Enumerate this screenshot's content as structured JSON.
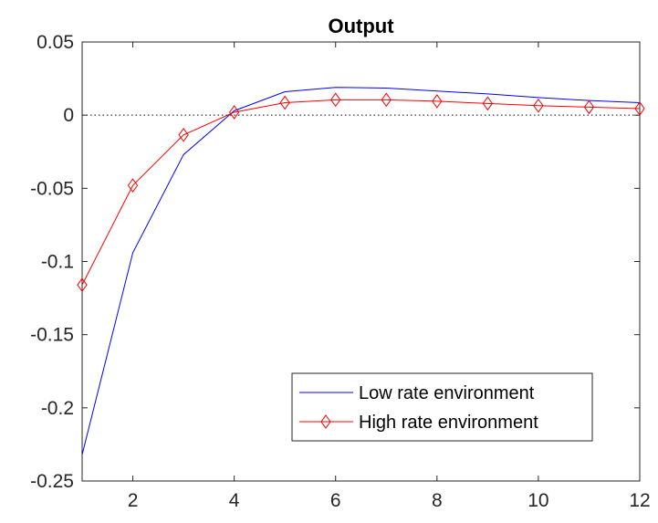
{
  "chart_data": {
    "type": "line",
    "title": "Output",
    "xlabel": "",
    "ylabel": "",
    "xlim": [
      1,
      12
    ],
    "ylim": [
      -0.25,
      0.05
    ],
    "xticks": [
      2,
      4,
      6,
      8,
      10,
      12
    ],
    "yticks": [
      0.05,
      0,
      -0.05,
      -0.1,
      -0.15,
      -0.2,
      -0.25
    ],
    "ytick_labels": [
      "0.05",
      "0",
      "-0.05",
      "-0.1",
      "-0.15",
      "-0.2",
      "-0.25"
    ],
    "zero_line": true,
    "grid": false,
    "legend_position": "lower-right",
    "x": [
      1,
      2,
      3,
      4,
      5,
      6,
      7,
      8,
      9,
      10,
      11,
      12
    ],
    "series": [
      {
        "name": "Low rate environment",
        "color": "#0000ff",
        "marker": "none",
        "values": [
          -0.232,
          -0.094,
          -0.027,
          0.003,
          0.016,
          0.019,
          0.0185,
          0.0165,
          0.0145,
          0.012,
          0.01,
          0.0085
        ]
      },
      {
        "name": "High rate environment",
        "color": "#ff0000",
        "marker": "diamond",
        "values": [
          -0.116,
          -0.048,
          -0.0135,
          0.002,
          0.0085,
          0.0105,
          0.0105,
          0.0095,
          0.008,
          0.0065,
          0.0055,
          0.0045
        ]
      }
    ]
  }
}
